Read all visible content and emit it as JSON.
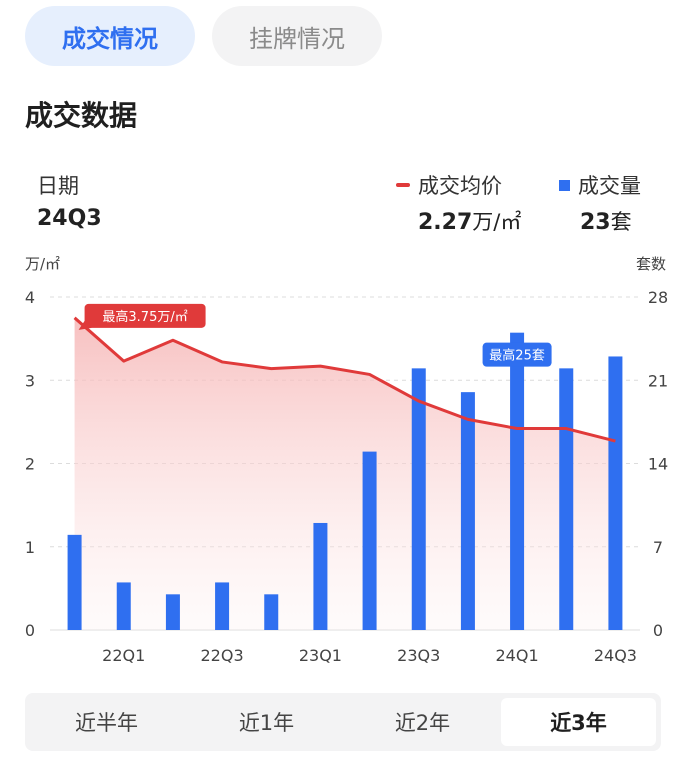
{
  "tabs": [
    {
      "label": "成交情况",
      "active": true
    },
    {
      "label": "挂牌情况",
      "active": false
    }
  ],
  "section_title": "成交数据",
  "header": {
    "date_label": "日期",
    "date_value": "24Q3",
    "price_legend": "成交均价",
    "price_value": "2.27",
    "price_unit": "万/㎡",
    "volume_legend": "成交量",
    "volume_value": "23",
    "volume_unit": "套"
  },
  "range_options": [
    {
      "label": "近半年",
      "active": false
    },
    {
      "label": "近1年",
      "active": false
    },
    {
      "label": "近2年",
      "active": false
    },
    {
      "label": "近3年",
      "active": true
    }
  ],
  "colors": {
    "price_line": "#e03a3a",
    "bar": "#2f6ff0",
    "tab_active": "#2f6ff0"
  },
  "chart_data": {
    "type": "bar",
    "categories": [
      "21Q4",
      "22Q1",
      "22Q2",
      "22Q3",
      "22Q4",
      "23Q1",
      "23Q2",
      "23Q3",
      "23Q4",
      "24Q1",
      "24Q2",
      "24Q3"
    ],
    "x_tick_labels": [
      "22Q1",
      "22Q3",
      "23Q1",
      "23Q3",
      "24Q1",
      "24Q3"
    ],
    "y_left_label": "万/㎡",
    "y_right_label": "套数",
    "y_left_ticks": [
      "0",
      "1",
      "2",
      "3",
      "4"
    ],
    "y_right_ticks": [
      "0",
      "7",
      "14",
      "21",
      "28"
    ],
    "ylim_left": [
      0,
      4
    ],
    "ylim_right": [
      0,
      28
    ],
    "grid": true,
    "series": [
      {
        "name": "成交量",
        "type": "bar",
        "axis": "right",
        "values": [
          8,
          4,
          3,
          4,
          3,
          9,
          15,
          22,
          20,
          25,
          22,
          23
        ]
      },
      {
        "name": "成交均价",
        "type": "area-line",
        "axis": "left",
        "values": [
          3.75,
          3.23,
          3.48,
          3.22,
          3.14,
          3.17,
          3.07,
          2.75,
          2.53,
          2.42,
          2.42,
          2.27
        ]
      }
    ],
    "annotations": [
      {
        "text": "最高3.75万/㎡",
        "series": "成交均价",
        "index": 0
      },
      {
        "text": "最高25套",
        "series": "成交量",
        "index": 9
      }
    ]
  }
}
